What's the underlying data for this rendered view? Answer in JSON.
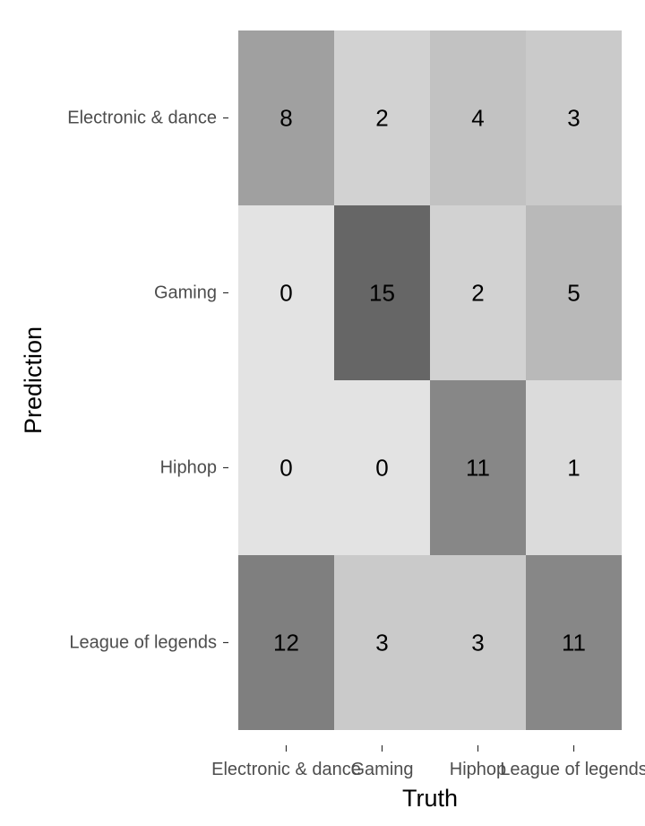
{
  "chart_data": {
    "type": "heatmap",
    "title": "",
    "xlabel": "Truth",
    "ylabel": "Prediction",
    "x_categories": [
      "Electronic & dance",
      "Gaming",
      "Hiphop",
      "League of legends"
    ],
    "y_categories": [
      "Electronic & dance",
      "Gaming",
      "Hiphop",
      "League of legends"
    ],
    "values": [
      [
        8,
        2,
        4,
        3
      ],
      [
        0,
        15,
        2,
        5
      ],
      [
        0,
        0,
        11,
        1
      ],
      [
        12,
        3,
        3,
        11
      ]
    ],
    "color_low": "#e3e3e3",
    "color_high": "#666666",
    "grid": false,
    "legend": "none"
  }
}
